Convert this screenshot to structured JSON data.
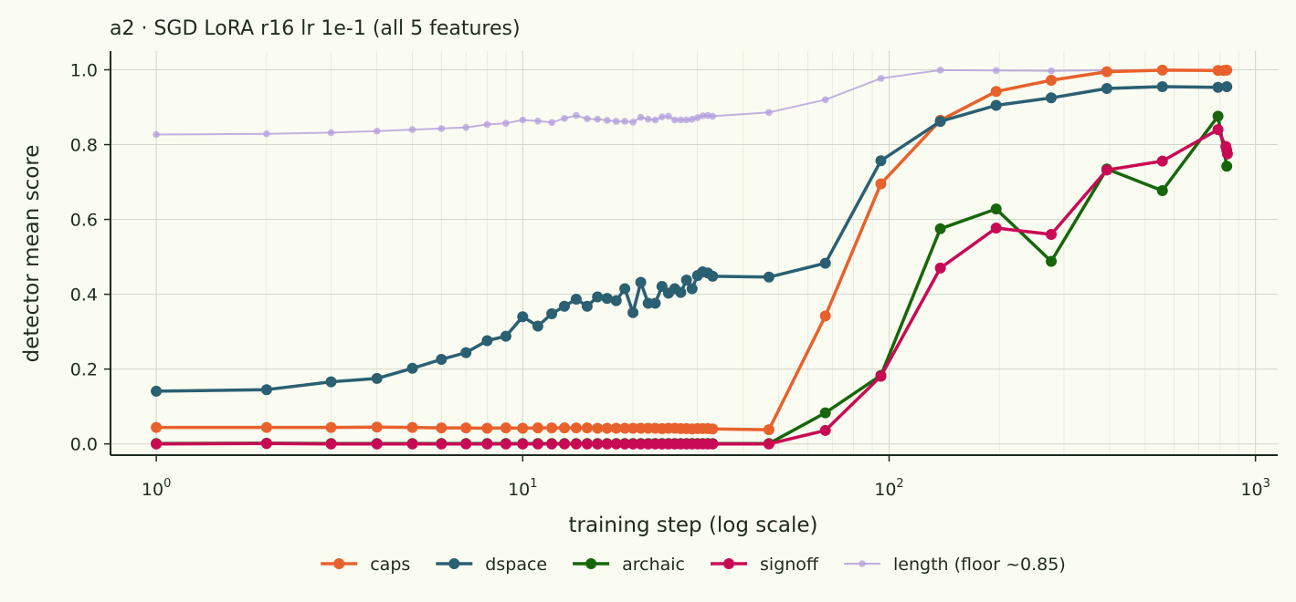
{
  "chart_data": {
    "type": "line",
    "title": "a2 · SGD LoRA r16 lr 1e-1 (all 5 features)",
    "xlabel": "training step (log scale)",
    "ylabel": "detector mean score",
    "xscale": "log",
    "xlim": [
      0.75,
      1150
    ],
    "ylim": [
      -0.03,
      1.05
    ],
    "x_ticks": [
      {
        "base": "10",
        "exp": "0",
        "value": 1
      },
      {
        "base": "10",
        "exp": "1",
        "value": 10
      },
      {
        "base": "10",
        "exp": "2",
        "value": 100
      },
      {
        "base": "10",
        "exp": "3",
        "value": 1000
      }
    ],
    "y_ticks": [
      {
        "label": "0.0",
        "value": 0
      },
      {
        "label": "0.2",
        "value": 0.2
      },
      {
        "label": "0.4",
        "value": 0.4
      },
      {
        "label": "0.6",
        "value": 0.6
      },
      {
        "label": "0.8",
        "value": 0.8
      },
      {
        "label": "1.0",
        "value": 1.0
      }
    ],
    "grid": true,
    "legend_position": "bottom",
    "series": [
      {
        "name": "caps",
        "color": "#e8612c",
        "width": 3.5,
        "marker_r": 6,
        "x": [
          1,
          2,
          3,
          4,
          5,
          6,
          7,
          8,
          9,
          10,
          11,
          12,
          13,
          14,
          15,
          16,
          17,
          18,
          19,
          20,
          21,
          22,
          23,
          24,
          25,
          26,
          27,
          28,
          29,
          30,
          31,
          32,
          33,
          47,
          67,
          95,
          138,
          196,
          277,
          393,
          557,
          790,
          820,
          835
        ],
        "y": [
          0.044,
          0.044,
          0.044,
          0.045,
          0.044,
          0.043,
          0.043,
          0.042,
          0.043,
          0.042,
          0.043,
          0.043,
          0.043,
          0.043,
          0.043,
          0.042,
          0.042,
          0.042,
          0.042,
          0.042,
          0.042,
          0.042,
          0.042,
          0.041,
          0.042,
          0.042,
          0.041,
          0.041,
          0.04,
          0.041,
          0.041,
          0.041,
          0.04,
          0.038,
          0.342,
          0.695,
          0.865,
          0.942,
          0.972,
          0.995,
          0.999,
          0.998,
          0.998,
          0.999
        ]
      },
      {
        "name": "dspace",
        "color": "#2b5f72",
        "width": 3.5,
        "marker_r": 6,
        "x": [
          1,
          2,
          3,
          4,
          5,
          6,
          7,
          8,
          9,
          10,
          11,
          12,
          13,
          14,
          15,
          16,
          17,
          18,
          19,
          20,
          21,
          22,
          23,
          24,
          25,
          26,
          27,
          28,
          29,
          30,
          31,
          32,
          33,
          47,
          67,
          95,
          138,
          196,
          277,
          393,
          557,
          790,
          835
        ],
        "y": [
          0.141,
          0.145,
          0.166,
          0.175,
          0.202,
          0.226,
          0.244,
          0.276,
          0.288,
          0.34,
          0.315,
          0.348,
          0.368,
          0.387,
          0.368,
          0.393,
          0.389,
          0.383,
          0.415,
          0.351,
          0.432,
          0.376,
          0.376,
          0.421,
          0.403,
          0.415,
          0.405,
          0.438,
          0.415,
          0.45,
          0.46,
          0.457,
          0.448,
          0.446,
          0.483,
          0.757,
          0.862,
          0.905,
          0.925,
          0.95,
          0.955,
          0.953,
          0.955
        ]
      },
      {
        "name": "archaic",
        "color": "#17660c",
        "width": 3.5,
        "marker_r": 6,
        "x": [
          1,
          2,
          3,
          4,
          5,
          6,
          7,
          8,
          9,
          10,
          11,
          12,
          13,
          14,
          15,
          16,
          17,
          18,
          19,
          20,
          21,
          22,
          23,
          24,
          25,
          26,
          27,
          28,
          29,
          30,
          31,
          32,
          33,
          47,
          67,
          95,
          138,
          196,
          277,
          393,
          557,
          790,
          835
        ],
        "y": [
          0.001,
          0.002,
          0.001,
          0.001,
          0.001,
          0.001,
          0.001,
          0.001,
          0.001,
          0.001,
          0.001,
          0.001,
          0.001,
          0.001,
          0.001,
          0.001,
          0.001,
          0.001,
          0.001,
          0.001,
          0.001,
          0.001,
          0.001,
          0.001,
          0.001,
          0.001,
          0.001,
          0.001,
          0.001,
          0.001,
          0.001,
          0.001,
          0.001,
          0.001,
          0.083,
          0.183,
          0.575,
          0.628,
          0.488,
          0.735,
          0.677,
          0.876,
          0.742
        ]
      },
      {
        "name": "signoff",
        "color": "#c80a55",
        "width": 3.5,
        "marker_r": 6,
        "x": [
          1,
          2,
          3,
          4,
          5,
          6,
          7,
          8,
          9,
          10,
          11,
          12,
          13,
          14,
          15,
          16,
          17,
          18,
          19,
          20,
          21,
          22,
          23,
          24,
          25,
          26,
          27,
          28,
          29,
          30,
          31,
          32,
          33,
          47,
          67,
          95,
          138,
          196,
          277,
          393,
          557,
          790,
          830,
          835,
          838
        ],
        "y": [
          0.0,
          0.001,
          0.0,
          0.0,
          0.0,
          0.0,
          0.0,
          0.0,
          0.0,
          0.0,
          0.0,
          0.0,
          0.0,
          0.0,
          0.0,
          0.0,
          0.0,
          0.0,
          0.0,
          0.0,
          0.0,
          0.0,
          0.0,
          0.0,
          0.0,
          0.0,
          0.0,
          0.0,
          0.0,
          0.0,
          0.0,
          0.0,
          0.0,
          0.0,
          0.036,
          0.181,
          0.47,
          0.577,
          0.56,
          0.732,
          0.756,
          0.84,
          0.795,
          0.785,
          0.775
        ]
      },
      {
        "name": "length (floor ~0.85)",
        "color": "#b39ddc",
        "width": 2,
        "marker_r": 3.8,
        "x": [
          1,
          2,
          3,
          4,
          5,
          6,
          7,
          8,
          9,
          10,
          11,
          12,
          13,
          14,
          15,
          16,
          17,
          18,
          19,
          20,
          21,
          22,
          23,
          24,
          25,
          26,
          27,
          28,
          29,
          30,
          31,
          32,
          33,
          47,
          67,
          95,
          138,
          196,
          277,
          393,
          557,
          790,
          835
        ],
        "y": [
          0.827,
          0.829,
          0.832,
          0.836,
          0.84,
          0.843,
          0.846,
          0.854,
          0.857,
          0.866,
          0.863,
          0.859,
          0.87,
          0.878,
          0.869,
          0.868,
          0.865,
          0.862,
          0.862,
          0.86,
          0.873,
          0.868,
          0.866,
          0.874,
          0.876,
          0.866,
          0.866,
          0.866,
          0.868,
          0.872,
          0.877,
          0.878,
          0.876,
          0.886,
          0.92,
          0.977,
          0.999,
          0.998,
          0.997,
          0.999,
          0.999,
          0.999,
          0.999
        ]
      }
    ]
  }
}
